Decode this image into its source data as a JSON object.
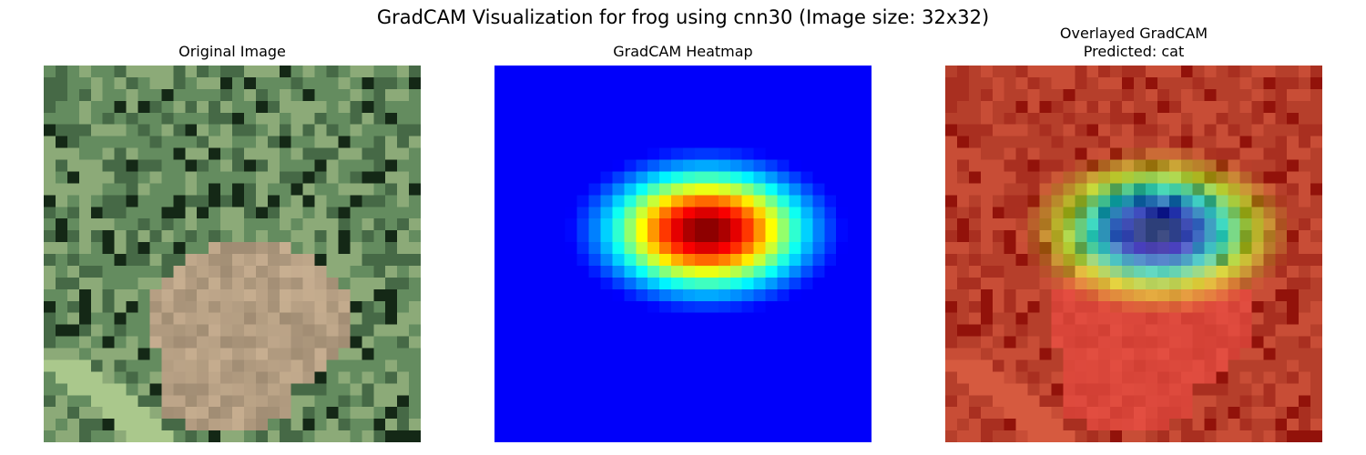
{
  "figure": {
    "title": "GradCAM Visualization for frog using cnn30 (Image size: 32x32)"
  },
  "panels": [
    {
      "id": "original",
      "title": "Original Image",
      "subtitle": ""
    },
    {
      "id": "heatmap",
      "title": "GradCAM Heatmap",
      "subtitle": ""
    },
    {
      "id": "overlay",
      "title": "Overlayed GradCAM",
      "subtitle": "Predicted: cat"
    }
  ],
  "image": {
    "width_cells": 32,
    "height_cells": 32,
    "colormap": "jet",
    "overlay_colormap": "inverted jet"
  }
}
